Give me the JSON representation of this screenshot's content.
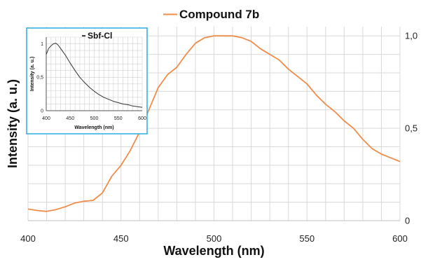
{
  "chart_data": [
    {
      "type": "line",
      "legend": {
        "label": "Compound 7b",
        "position": "top-center"
      },
      "xlabel": "Wavelength (nm)",
      "ylabel": "Intensity (a. u.)",
      "xlim": [
        400,
        600
      ],
      "ylim": [
        0,
        1.05
      ],
      "x_ticks": [
        400,
        450,
        500,
        550,
        600
      ],
      "x_tick_labels": [
        "400",
        "450",
        "500",
        "550",
        "600"
      ],
      "y_ticks": [
        0,
        0.5,
        1.0
      ],
      "y_tick_labels": [
        "0",
        "0,5",
        "1,0"
      ],
      "y_axis_side": "right",
      "grid": true,
      "series": [
        {
          "name": "Compound 7b",
          "color": "#f08c4a",
          "x": [
            400,
            405,
            410,
            415,
            420,
            425,
            430,
            435,
            440,
            445,
            450,
            455,
            460,
            465,
            470,
            475,
            480,
            485,
            490,
            495,
            500,
            505,
            510,
            515,
            520,
            525,
            530,
            535,
            540,
            545,
            550,
            555,
            560,
            565,
            570,
            575,
            580,
            585,
            590,
            595,
            600
          ],
          "y": [
            0.063,
            0.055,
            0.05,
            0.06,
            0.075,
            0.095,
            0.105,
            0.11,
            0.15,
            0.24,
            0.3,
            0.38,
            0.48,
            0.6,
            0.72,
            0.79,
            0.83,
            0.9,
            0.96,
            0.99,
            1.0,
            1.0,
            1.0,
            0.99,
            0.97,
            0.93,
            0.9,
            0.87,
            0.82,
            0.78,
            0.74,
            0.68,
            0.63,
            0.59,
            0.54,
            0.5,
            0.44,
            0.39,
            0.36,
            0.34,
            0.32
          ]
        }
      ]
    },
    {
      "type": "line",
      "legend": {
        "label": "Sbf-Cl",
        "position": "top-center"
      },
      "xlabel": "Wavelength (nm)",
      "ylabel": "Intensity (a. u.)",
      "xlim": [
        400,
        600
      ],
      "ylim": [
        0,
        1.1
      ],
      "x_ticks": [
        400,
        450,
        500,
        550,
        600
      ],
      "x_tick_labels": [
        "400",
        "450",
        "500",
        "550",
        "600"
      ],
      "y_ticks": [
        0,
        0.5,
        1
      ],
      "y_tick_labels": [
        "0",
        "0,5",
        "1"
      ],
      "grid": true,
      "series": [
        {
          "name": "Sbf-Cl",
          "color": "#333333",
          "x": [
            400,
            405,
            410,
            415,
            420,
            425,
            430,
            440,
            450,
            460,
            470,
            480,
            490,
            500,
            510,
            520,
            530,
            540,
            550,
            560,
            570,
            580,
            590,
            600
          ],
          "y": [
            0.84,
            0.93,
            0.97,
            1.0,
            1.01,
            0.98,
            0.93,
            0.83,
            0.71,
            0.6,
            0.5,
            0.42,
            0.35,
            0.29,
            0.24,
            0.2,
            0.17,
            0.14,
            0.12,
            0.1,
            0.09,
            0.07,
            0.06,
            0.05
          ]
        }
      ]
    }
  ]
}
